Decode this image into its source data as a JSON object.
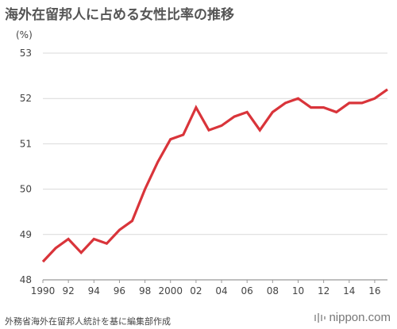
{
  "title": "海外在留邦人に占める女性比率の推移",
  "unit_label": "(%)",
  "source": "外務省海外在留邦人統計を基に編集部作成",
  "brand": {
    "name": "nippon.com",
    "icon": "nippon-logo-icon"
  },
  "chart_data": {
    "type": "line",
    "title": "海外在留邦人に占める女性比率の推移",
    "xlabel": "",
    "ylabel": "(%)",
    "x": [
      1990,
      1991,
      1992,
      1993,
      1994,
      1995,
      1996,
      1997,
      1998,
      1999,
      2000,
      2001,
      2002,
      2003,
      2004,
      2005,
      2006,
      2007,
      2008,
      2009,
      2010,
      2011,
      2012,
      2013,
      2014,
      2015,
      2016,
      2017
    ],
    "series": [
      {
        "values": [
          48.4,
          48.7,
          48.9,
          48.6,
          48.9,
          48.8,
          49.1,
          49.3,
          50.0,
          50.6,
          51.1,
          51.2,
          51.8,
          51.3,
          51.4,
          51.6,
          51.7,
          51.3,
          51.7,
          51.9,
          52.0,
          51.8,
          51.8,
          51.7,
          51.9,
          51.9,
          52.0,
          52.2
        ],
        "color": "#d9343a"
      }
    ],
    "xlim": [
      1990,
      2017
    ],
    "ylim": [
      48,
      53
    ],
    "yticks": [
      "48",
      "49",
      "50",
      "51",
      "52",
      "53"
    ],
    "xtick_values": [
      1990,
      1992,
      1994,
      1996,
      1998,
      2000,
      2002,
      2004,
      2006,
      2008,
      2010,
      2012,
      2014,
      2016
    ],
    "xtick_labels": [
      "1990",
      "92",
      "94",
      "96",
      "98",
      "2000",
      "02",
      "04",
      "06",
      "08",
      "10",
      "12",
      "14",
      "16"
    ],
    "grid": true,
    "colors": {
      "line": "#d9343a",
      "grid": "#d9d9d9",
      "baseline": "#999999"
    }
  }
}
